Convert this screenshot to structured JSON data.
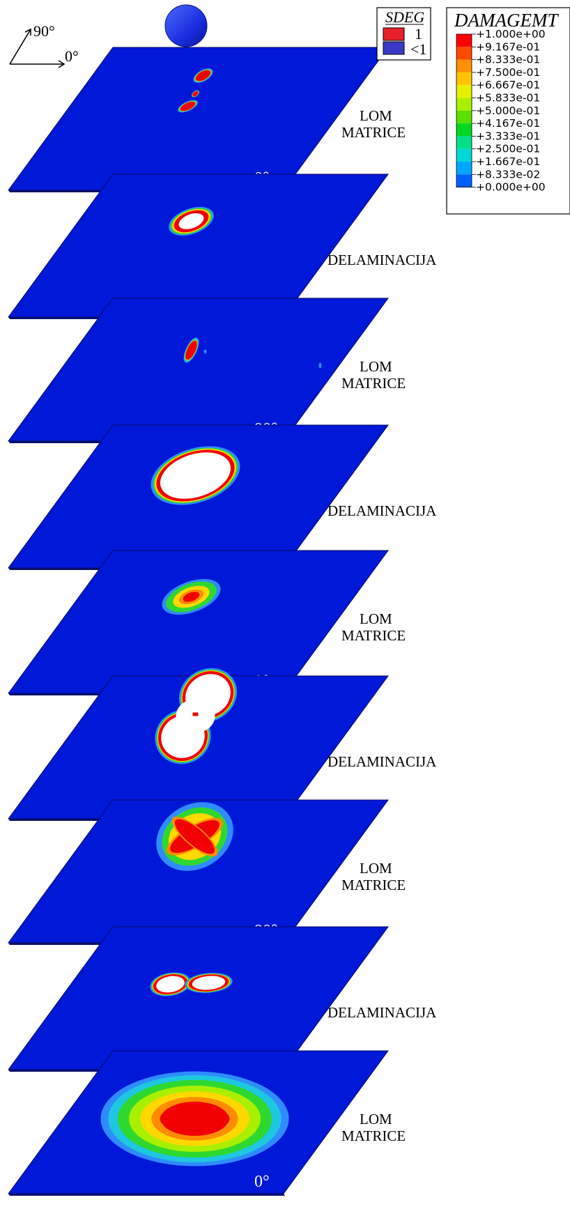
{
  "orientation": {
    "angle_90": "90°",
    "angle_0": "0°"
  },
  "sdeg_legend": {
    "title": "SDEG",
    "items": [
      {
        "label": "1",
        "color": "#e8202a"
      },
      {
        "label": "<1",
        "color": "#3a3ac8"
      }
    ]
  },
  "damage_legend": {
    "title": "DAMAGEMT",
    "entries": [
      {
        "label": "+1.000e+00",
        "color": "#ff0000"
      },
      {
        "label": "+9.167e-01",
        "color": "#ff4a00"
      },
      {
        "label": "+8.333e-01",
        "color": "#ff9000"
      },
      {
        "label": "+7.500e-01",
        "color": "#ffc400"
      },
      {
        "label": "+6.667e-01",
        "color": "#e6f000"
      },
      {
        "label": "+5.833e-01",
        "color": "#a8f000"
      },
      {
        "label": "+5.000e-01",
        "color": "#5ae000"
      },
      {
        "label": "+4.167e-01",
        "color": "#00d820"
      },
      {
        "label": "+3.333e-01",
        "color": "#00e08a"
      },
      {
        "label": "+2.500e-01",
        "color": "#00d8d8"
      },
      {
        "label": "+1.667e-01",
        "color": "#00a8ff"
      },
      {
        "label": "+8.333e-02",
        "color": "#0060ff"
      },
      {
        "label": "+0.000e+00",
        "color": "#0018e0"
      }
    ]
  },
  "layers": [
    {
      "label_lines": [
        "LOM",
        "MATRICE"
      ],
      "angle": "0°",
      "damage": "matrix-small"
    },
    {
      "label_lines": [
        "DELAMINACIJA"
      ],
      "angle": "",
      "damage": "delam-small"
    },
    {
      "label_lines": [
        "LOM",
        "MATRICE"
      ],
      "angle": "90°",
      "damage": "matrix-tiny"
    },
    {
      "label_lines": [
        "DELAMINACIJA"
      ],
      "angle": "",
      "damage": "delam-large"
    },
    {
      "label_lines": [
        "LOM",
        "MATRICE"
      ],
      "angle": "0°",
      "damage": "matrix-medium"
    },
    {
      "label_lines": [
        "DELAMINACIJA"
      ],
      "angle": "",
      "damage": "delam-peanut"
    },
    {
      "label_lines": [
        "LOM",
        "MATRICE"
      ],
      "angle": "90°",
      "damage": "matrix-x"
    },
    {
      "label_lines": [
        "DELAMINACIJA"
      ],
      "angle": "",
      "damage": "delam-double"
    },
    {
      "label_lines": [
        "LOM",
        "MATRICE"
      ],
      "angle": "0°",
      "damage": "matrix-large"
    }
  ]
}
